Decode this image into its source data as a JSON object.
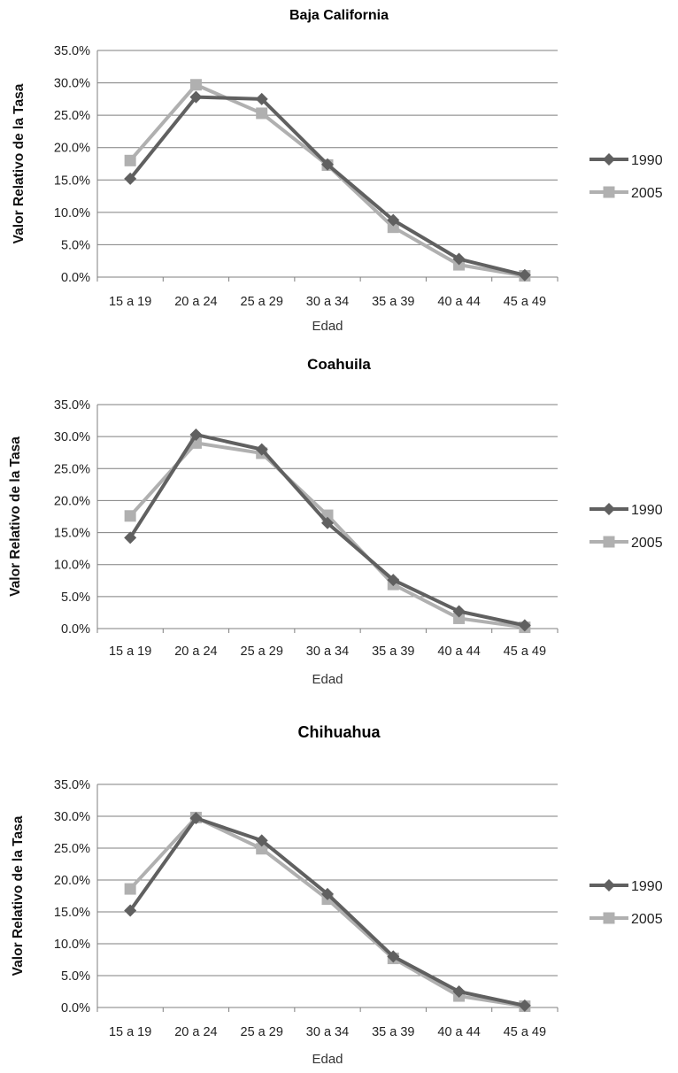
{
  "colors": {
    "series_1990": "#606060",
    "series_2005": "#b0b0b0",
    "grid": "#7f7f7f"
  },
  "chart_data": [
    {
      "type": "line",
      "title": "Baja California",
      "xlabel": "Edad",
      "ylabel": "Valor Relativo de la Tasa",
      "categories": [
        "15 a 19",
        "20 a 24",
        "25 a 29",
        "30 a 34",
        "35 a 39",
        "40 a 44",
        "45 a 49"
      ],
      "ylim": [
        0,
        35
      ],
      "yticks": [
        "0.0%",
        "5.0%",
        "10.0%",
        "15.0%",
        "20.0%",
        "25.0%",
        "30.0%",
        "35.0%"
      ],
      "grid": true,
      "legend_position": "right",
      "series": [
        {
          "name": "1990",
          "marker": "diamond",
          "values": [
            15.2,
            27.8,
            27.5,
            17.4,
            8.8,
            2.8,
            0.3
          ]
        },
        {
          "name": "2005",
          "marker": "square",
          "values": [
            18.0,
            29.7,
            25.3,
            17.3,
            7.7,
            1.9,
            0.2
          ]
        }
      ]
    },
    {
      "type": "line",
      "title": "Coahuila",
      "xlabel": "Edad",
      "ylabel": "Valor Relativo de la Tasa",
      "categories": [
        "15 a 19",
        "20 a 24",
        "25 a 29",
        "30 a 34",
        "35 a 39",
        "40 a 44",
        "45 a 49"
      ],
      "ylim": [
        0,
        35
      ],
      "yticks": [
        "0.0%",
        "5.0%",
        "10.0%",
        "15.0%",
        "20.0%",
        "25.0%",
        "30.0%",
        "35.0%"
      ],
      "grid": true,
      "legend_position": "right",
      "series": [
        {
          "name": "1990",
          "marker": "diamond",
          "values": [
            14.2,
            30.3,
            28.0,
            16.5,
            7.6,
            2.7,
            0.5
          ]
        },
        {
          "name": "2005",
          "marker": "square",
          "values": [
            17.6,
            29.0,
            27.4,
            17.7,
            6.9,
            1.6,
            0.2
          ]
        }
      ]
    },
    {
      "type": "line",
      "title": "Chihuahua",
      "xlabel": "Edad",
      "ylabel": "Valor Relativo de la Tasa",
      "categories": [
        "15 a 19",
        "20 a 24",
        "25 a 29",
        "30 a 34",
        "35 a 39",
        "40 a 44",
        "45 a 49"
      ],
      "ylim": [
        0,
        35
      ],
      "yticks": [
        "0.0%",
        "5.0%",
        "10.0%",
        "15.0%",
        "20.0%",
        "25.0%",
        "30.0%",
        "35.0%"
      ],
      "grid": true,
      "legend_position": "right",
      "series": [
        {
          "name": "1990",
          "marker": "diamond",
          "values": [
            15.2,
            29.7,
            26.2,
            17.8,
            8.0,
            2.5,
            0.3
          ]
        },
        {
          "name": "2005",
          "marker": "square",
          "values": [
            18.6,
            29.8,
            24.9,
            17.0,
            7.7,
            1.8,
            0.2
          ]
        }
      ]
    }
  ]
}
